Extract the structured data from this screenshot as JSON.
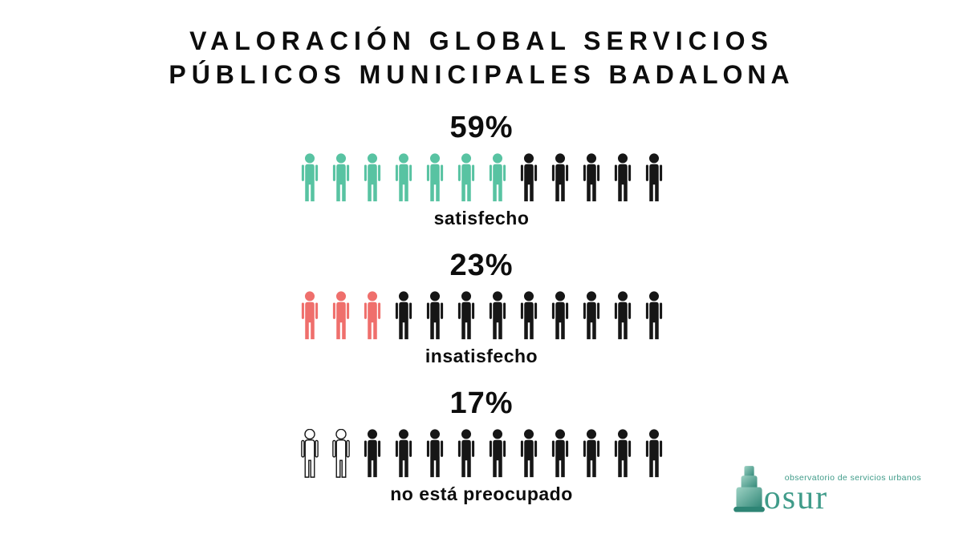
{
  "title": {
    "line1": "VALORACIÓN GLOBAL SERVICIOS",
    "line2_prefix": "PÚBLICOS MUNICIPALES ",
    "line2_emphasis": "BADALONA"
  },
  "chart_data": {
    "type": "pictogram",
    "title": "VALORACIÓN GLOBAL SERVICIOS PÚBLICOS MUNICIPALES BADALONA",
    "icons_per_row": 12,
    "base_icon_color": "#161616",
    "legend_position": "below-each-row",
    "rows": [
      {
        "label": "satisfecho",
        "value_pct": 59,
        "value_label": "59%",
        "highlighted_icons": 7,
        "icon_color": "#58c3a2",
        "outlined": false
      },
      {
        "label": "insatisfecho",
        "value_pct": 23,
        "value_label": "23%",
        "highlighted_icons": 3,
        "icon_color": "#ef6f6c",
        "outlined": false
      },
      {
        "label": "no está preocupado",
        "value_pct": 17,
        "value_label": "17%",
        "highlighted_icons": 2,
        "icon_color": "#ffffff",
        "outlined": true
      }
    ]
  },
  "logo": {
    "name": "osur",
    "tagline": "observatorio de servicios urbanos",
    "brand_color": "#3f9b89"
  }
}
